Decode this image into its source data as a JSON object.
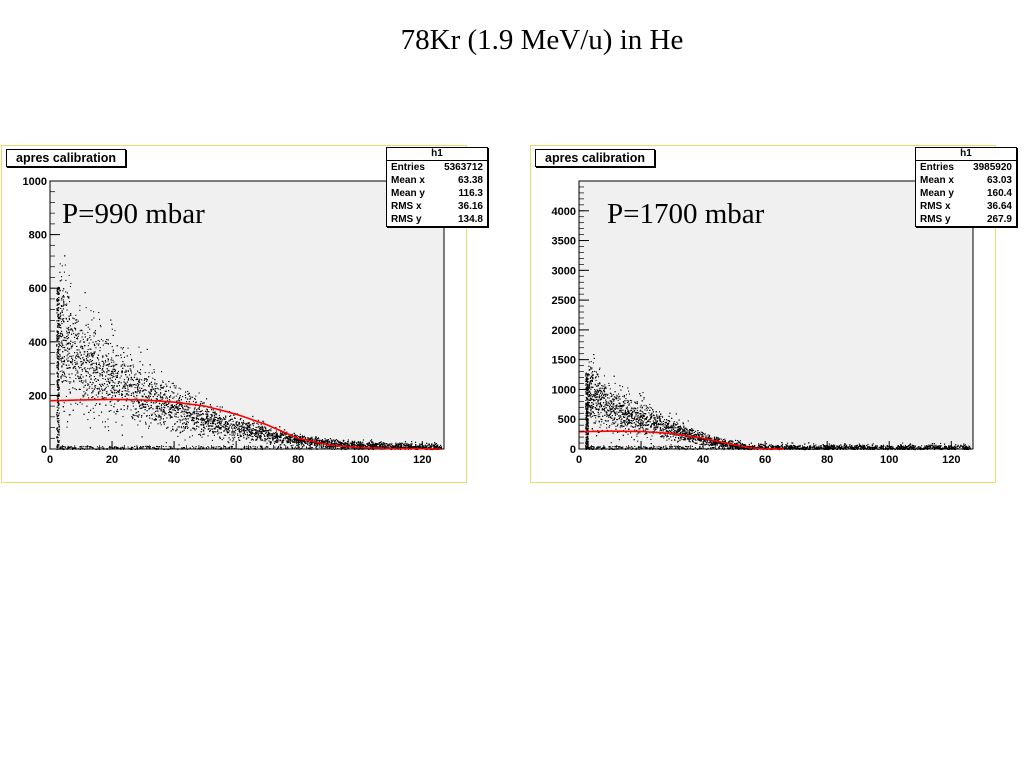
{
  "slide_title": "78Kr (1.9 MeV/u) in He",
  "colors": {
    "frame": "#e8dd6a",
    "plot_bg": "#f0f0f0",
    "points": "#000000",
    "fit_curve": "#ff0000"
  },
  "panels": [
    {
      "hist_title": "apres calibration",
      "pressure_label": "P=990 mbar",
      "stats": {
        "name": "h1",
        "rows": [
          {
            "label": "Entries",
            "value": "5363712"
          },
          {
            "label": "Mean x",
            "value": "63.38"
          },
          {
            "label": "Mean y",
            "value": "116.3"
          },
          {
            "label": "RMS x",
            "value": "36.16"
          },
          {
            "label": "RMS y",
            "value": "134.8"
          }
        ]
      }
    },
    {
      "hist_title": "apres calibration",
      "pressure_label": "P=1700 mbar",
      "stats": {
        "name": "h1",
        "rows": [
          {
            "label": "Entries",
            "value": "3985920"
          },
          {
            "label": "Mean x",
            "value": "63.03"
          },
          {
            "label": "Mean y",
            "value": "160.4"
          },
          {
            "label": "RMS x",
            "value": "36.64"
          },
          {
            "label": "RMS y",
            "value": "267.9"
          }
        ]
      }
    }
  ],
  "chart_data": [
    {
      "type": "scatter",
      "title": "apres calibration",
      "xlim": [
        0,
        127
      ],
      "ylim": [
        0,
        1000
      ],
      "x_ticks": [
        0,
        20,
        40,
        60,
        80,
        100,
        120
      ],
      "y_ticks": [
        0,
        200,
        400,
        600,
        800,
        1000
      ],
      "grid": false,
      "legend": "none",
      "density_band": {
        "x": [
          3,
          5,
          10,
          20,
          30,
          40,
          50,
          60,
          70,
          80,
          90,
          100,
          110,
          120,
          126
        ],
        "y": [
          450,
          380,
          330,
          270,
          200,
          150,
          110,
          80,
          55,
          35,
          22,
          15,
          10,
          8,
          6
        ]
      },
      "fit_curve": {
        "x": [
          0,
          10,
          20,
          30,
          40,
          50,
          60,
          70,
          80,
          90,
          100,
          110,
          126
        ],
        "y": [
          180,
          183,
          185,
          183,
          175,
          160,
          130,
          90,
          40,
          15,
          5,
          2,
          0
        ]
      }
    },
    {
      "type": "scatter",
      "title": "apres calibration",
      "xlim": [
        0,
        127
      ],
      "ylim": [
        0,
        4500
      ],
      "x_ticks": [
        0,
        20,
        40,
        60,
        80,
        100,
        120
      ],
      "y_ticks": [
        0,
        500,
        1000,
        1500,
        2000,
        2500,
        3000,
        3500,
        4000
      ],
      "grid": false,
      "legend": "none",
      "density_band": {
        "x": [
          3,
          5,
          10,
          20,
          30,
          40,
          50,
          55,
          60,
          80,
          100,
          120,
          126
        ],
        "y": [
          950,
          850,
          700,
          520,
          330,
          170,
          60,
          20,
          10,
          8,
          8,
          8,
          8
        ]
      },
      "fit_curve": {
        "x": [
          0,
          10,
          20,
          30,
          40,
          50,
          55,
          60,
          66
        ],
        "y": [
          290,
          300,
          295,
          260,
          180,
          70,
          20,
          3,
          0
        ]
      }
    }
  ]
}
